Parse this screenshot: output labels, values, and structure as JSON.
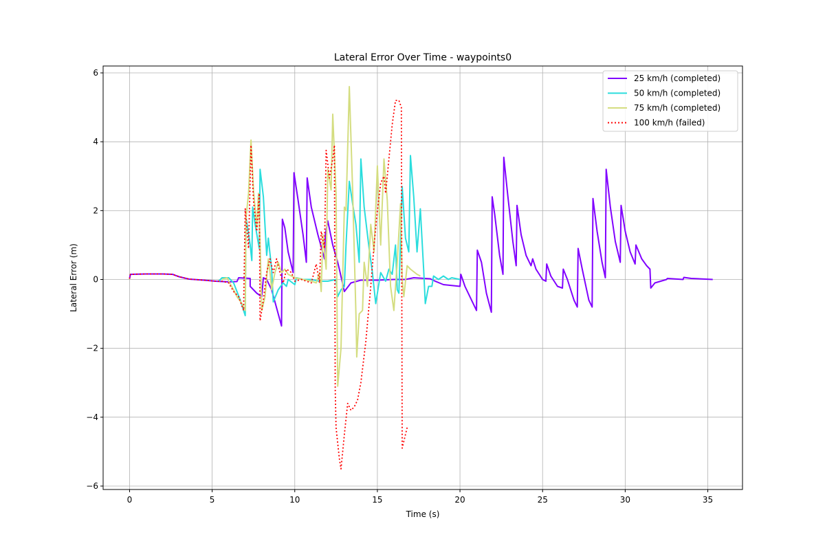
{
  "chart_data": {
    "type": "line",
    "title": "Lateral Error Over Time - waypoints0",
    "xlabel": "Time (s)",
    "ylabel": "Lateral Error (m)",
    "xlim": [
      -1.6,
      37.1
    ],
    "ylim": [
      -6.1,
      6.2
    ],
    "xticks": [
      0,
      5,
      10,
      15,
      20,
      25,
      30,
      35
    ],
    "yticks": [
      -6,
      -4,
      -2,
      0,
      2,
      4,
      6
    ],
    "grid": true,
    "legend_position": "top-right",
    "series": [
      {
        "name": "25 km/h (completed)",
        "color": "#8000ff",
        "dash": "solid",
        "points": [
          [
            0,
            0.02
          ],
          [
            0.05,
            0.15
          ],
          [
            1,
            0.16
          ],
          [
            2,
            0.16
          ],
          [
            2.6,
            0.15
          ],
          [
            3,
            0.08
          ],
          [
            3.6,
            0.01
          ],
          [
            4.5,
            -0.02
          ],
          [
            5.2,
            -0.05
          ],
          [
            6,
            -0.07
          ],
          [
            6.5,
            -0.06
          ],
          [
            6.6,
            0.05
          ],
          [
            7.3,
            0.03
          ],
          [
            7.3,
            -0.2
          ],
          [
            7.7,
            -0.4
          ],
          [
            8,
            -0.5
          ],
          [
            8.1,
            0.05
          ],
          [
            8.3,
            0
          ],
          [
            8.6,
            -0.3
          ],
          [
            9.2,
            -1.35
          ],
          [
            9.25,
            1.75
          ],
          [
            9.4,
            1.5
          ],
          [
            9.6,
            0.8
          ],
          [
            9.9,
            0.2
          ],
          [
            9.95,
            3.1
          ],
          [
            10.2,
            2.3
          ],
          [
            10.5,
            1.3
          ],
          [
            10.7,
            0.5
          ],
          [
            10.75,
            2.95
          ],
          [
            11,
            2.1
          ],
          [
            11.4,
            1.3
          ],
          [
            11.8,
            0.6
          ],
          [
            11.85,
            1.3
          ],
          [
            12,
            1.7
          ],
          [
            12.3,
            1.0
          ],
          [
            12.6,
            0.5
          ],
          [
            12.7,
            0.3
          ],
          [
            13,
            -0.35
          ],
          [
            13.4,
            -0.1
          ],
          [
            14,
            -0.02
          ],
          [
            15,
            -0.02
          ],
          [
            16,
            0
          ],
          [
            16.7,
            0
          ],
          [
            17.2,
            0.05
          ],
          [
            18.2,
            0.02
          ],
          [
            18.5,
            -0.05
          ],
          [
            19,
            -0.15
          ],
          [
            20,
            -0.2
          ],
          [
            20.05,
            0.15
          ],
          [
            20.3,
            -0.2
          ],
          [
            20.8,
            -0.7
          ],
          [
            21,
            -0.9
          ],
          [
            21.05,
            0.85
          ],
          [
            21.3,
            0.5
          ],
          [
            21.6,
            -0.4
          ],
          [
            21.9,
            -0.95
          ],
          [
            21.95,
            2.4
          ],
          [
            22.1,
            1.9
          ],
          [
            22.4,
            0.7
          ],
          [
            22.6,
            0.15
          ],
          [
            22.65,
            3.55
          ],
          [
            22.9,
            2.4
          ],
          [
            23.2,
            1.1
          ],
          [
            23.4,
            0.4
          ],
          [
            23.45,
            2.15
          ],
          [
            23.7,
            1.3
          ],
          [
            24,
            0.7
          ],
          [
            24.3,
            0.4
          ],
          [
            24.4,
            0.6
          ],
          [
            24.6,
            0.3
          ],
          [
            25,
            0
          ],
          [
            25.2,
            -0.05
          ],
          [
            25.25,
            0.45
          ],
          [
            25.5,
            0.1
          ],
          [
            25.9,
            -0.2
          ],
          [
            26.2,
            -0.25
          ],
          [
            26.25,
            0.3
          ],
          [
            26.5,
            0
          ],
          [
            26.9,
            -0.6
          ],
          [
            27.1,
            -0.8
          ],
          [
            27.15,
            0.9
          ],
          [
            27.4,
            0.3
          ],
          [
            27.8,
            -0.6
          ],
          [
            28,
            -0.8
          ],
          [
            28.05,
            2.35
          ],
          [
            28.3,
            1.4
          ],
          [
            28.6,
            0.5
          ],
          [
            28.8,
            0.05
          ],
          [
            28.85,
            3.2
          ],
          [
            29.1,
            2.1
          ],
          [
            29.4,
            1.1
          ],
          [
            29.7,
            0.5
          ],
          [
            29.75,
            2.15
          ],
          [
            30,
            1.4
          ],
          [
            30.3,
            0.8
          ],
          [
            30.6,
            0.45
          ],
          [
            30.65,
            1.0
          ],
          [
            31,
            0.6
          ],
          [
            31.3,
            0.4
          ],
          [
            31.5,
            0.3
          ],
          [
            31.55,
            -0.25
          ],
          [
            31.8,
            -0.1
          ],
          [
            32.5,
            0
          ],
          [
            32.55,
            0.03
          ],
          [
            33.5,
            0
          ],
          [
            33.55,
            0.06
          ],
          [
            34,
            0.03
          ],
          [
            35.3,
            0
          ]
        ]
      },
      {
        "name": "50 km/h (completed)",
        "color": "#2adddd",
        "dash": "solid",
        "points": [
          [
            5.4,
            -0.05
          ],
          [
            5.6,
            0.05
          ],
          [
            6,
            0.05
          ],
          [
            6.3,
            -0.1
          ],
          [
            6.7,
            -0.6
          ],
          [
            7,
            -1.05
          ],
          [
            7.05,
            1.8
          ],
          [
            7.3,
            1.0
          ],
          [
            7.4,
            0.55
          ],
          [
            7.45,
            2.1
          ],
          [
            7.6,
            1.6
          ],
          [
            7.85,
            0.9
          ],
          [
            7.9,
            3.2
          ],
          [
            8.1,
            2.4
          ],
          [
            8.3,
            0.7
          ],
          [
            8.4,
            1.2
          ],
          [
            8.6,
            0.3
          ],
          [
            8.7,
            -0.65
          ],
          [
            9,
            -0.3
          ],
          [
            9.3,
            -0.1
          ],
          [
            9.5,
            -0.2
          ],
          [
            9.6,
            0
          ],
          [
            10,
            -0.15
          ],
          [
            10.1,
            0.05
          ],
          [
            10.5,
            0
          ],
          [
            11,
            0
          ],
          [
            11.5,
            -0.05
          ],
          [
            12,
            -0.05
          ],
          [
            12.5,
            0
          ],
          [
            12.6,
            -0.5
          ],
          [
            12.8,
            -0.3
          ],
          [
            13,
            -0.2
          ],
          [
            13.1,
            1.0
          ],
          [
            13.3,
            2.85
          ],
          [
            13.5,
            2.2
          ],
          [
            13.7,
            1.6
          ],
          [
            13.9,
            0.5
          ],
          [
            14,
            3.5
          ],
          [
            14.2,
            2.1
          ],
          [
            14.5,
            0.9
          ],
          [
            14.7,
            0.2
          ],
          [
            14.9,
            -0.7
          ],
          [
            15.2,
            0.2
          ],
          [
            15.5,
            -0.05
          ],
          [
            15.7,
            0.3
          ],
          [
            15.9,
            0.15
          ],
          [
            16.1,
            1.0
          ],
          [
            16.2,
            -0.3
          ],
          [
            16.3,
            -0.4
          ],
          [
            16.5,
            2.7
          ],
          [
            16.7,
            1.2
          ],
          [
            16.9,
            0.8
          ],
          [
            17,
            3.6
          ],
          [
            17.2,
            2.4
          ],
          [
            17.4,
            0.8
          ],
          [
            17.6,
            2.05
          ],
          [
            17.8,
            0.3
          ],
          [
            17.9,
            -0.7
          ],
          [
            18.1,
            -0.2
          ],
          [
            18.3,
            -0.2
          ],
          [
            18.4,
            0.1
          ],
          [
            18.7,
            0
          ],
          [
            19,
            0.1
          ],
          [
            19.3,
            0
          ],
          [
            19.5,
            0.05
          ],
          [
            20,
            0
          ]
        ]
      },
      {
        "name": "75 km/h (completed)",
        "color": "#d4dd80",
        "dash": "solid",
        "points": [
          [
            5.6,
            0
          ],
          [
            5.9,
            0.05
          ],
          [
            6,
            -0.05
          ],
          [
            6.3,
            -0.3
          ],
          [
            6.5,
            -0.5
          ],
          [
            6.8,
            -0.7
          ],
          [
            7,
            -0.9
          ],
          [
            7.05,
            1.8
          ],
          [
            7.2,
            2.5
          ],
          [
            7.35,
            4.05
          ],
          [
            7.5,
            2.6
          ],
          [
            7.7,
            1.5
          ],
          [
            7.8,
            2.5
          ],
          [
            7.9,
            1.1
          ],
          [
            8,
            -0.9
          ],
          [
            8.2,
            -0.5
          ],
          [
            8.4,
            0.6
          ],
          [
            8.5,
            0.2
          ],
          [
            8.6,
            -0.3
          ],
          [
            8.8,
            0.2
          ],
          [
            9,
            0.5
          ],
          [
            9.2,
            0.2
          ],
          [
            9.4,
            0.3
          ],
          [
            9.6,
            0.15
          ],
          [
            9.8,
            0.1
          ],
          [
            10,
            0.05
          ],
          [
            10.5,
            0
          ],
          [
            11,
            -0.05
          ],
          [
            11.3,
            -0.1
          ],
          [
            11.5,
            0.2
          ],
          [
            11.6,
            -0.35
          ],
          [
            11.7,
            1.3
          ],
          [
            11.9,
            0.3
          ],
          [
            12,
            3.2
          ],
          [
            12.2,
            2.6
          ],
          [
            12.3,
            4.8
          ],
          [
            12.5,
            2.5
          ],
          [
            12.6,
            -3.1
          ],
          [
            12.8,
            -2.0
          ],
          [
            13,
            2.1
          ],
          [
            13.1,
            2.0
          ],
          [
            13.3,
            5.6
          ],
          [
            13.5,
            2.6
          ],
          [
            13.7,
            -1.0
          ],
          [
            13.75,
            -2.25
          ],
          [
            13.9,
            -1.0
          ],
          [
            14.1,
            -0.9
          ],
          [
            14.2,
            0.5
          ],
          [
            14.4,
            -0.2
          ],
          [
            14.6,
            1.6
          ],
          [
            14.8,
            0.8
          ],
          [
            15,
            3.3
          ],
          [
            15.2,
            1.0
          ],
          [
            15.4,
            3.5
          ],
          [
            15.6,
            2.3
          ],
          [
            15.8,
            -0.2
          ],
          [
            16,
            -0.9
          ],
          [
            16.2,
            0.5
          ],
          [
            16.4,
            2.2
          ],
          [
            16.5,
            0
          ],
          [
            16.6,
            -0.5
          ],
          [
            16.8,
            0.4
          ],
          [
            17,
            0.3
          ],
          [
            17.4,
            0.15
          ],
          [
            17.6,
            0.1
          ]
        ]
      },
      {
        "name": "100 km/h (failed)",
        "color": "#ff0000",
        "dash": "dotted",
        "points": [
          [
            0,
            0.02
          ],
          [
            0.05,
            0.15
          ],
          [
            1,
            0.16
          ],
          [
            2,
            0.16
          ],
          [
            2.6,
            0.15
          ],
          [
            3,
            0.08
          ],
          [
            3.6,
            0.01
          ],
          [
            4.5,
            -0.02
          ],
          [
            5.2,
            -0.05
          ],
          [
            5.6,
            -0.05
          ],
          [
            6,
            -0.1
          ],
          [
            6.3,
            -0.35
          ],
          [
            6.6,
            -0.5
          ],
          [
            6.9,
            -0.9
          ],
          [
            7,
            2.05
          ],
          [
            7.2,
            0.9
          ],
          [
            7.35,
            3.9
          ],
          [
            7.5,
            2.3
          ],
          [
            7.7,
            1.4
          ],
          [
            7.85,
            2.5
          ],
          [
            7.9,
            -1.2
          ],
          [
            8.1,
            -0.6
          ],
          [
            8.3,
            0.2
          ],
          [
            8.5,
            0.6
          ],
          [
            8.7,
            0.2
          ],
          [
            8.9,
            0.6
          ],
          [
            9.1,
            0.2
          ],
          [
            9.3,
            -0.1
          ],
          [
            9.5,
            0.3
          ],
          [
            9.8,
            0.2
          ],
          [
            10,
            -0.05
          ],
          [
            10.4,
            0
          ],
          [
            11,
            -0.1
          ],
          [
            11.3,
            0.45
          ],
          [
            11.5,
            -0.1
          ],
          [
            11.6,
            1.4
          ],
          [
            11.8,
            0.9
          ],
          [
            11.9,
            3.75
          ],
          [
            12.1,
            2.95
          ],
          [
            12.3,
            3.5
          ],
          [
            12.4,
            3.9
          ],
          [
            12.45,
            -3.2
          ],
          [
            12.5,
            -4.3
          ],
          [
            12.7,
            -5.2
          ],
          [
            12.8,
            -5.5
          ],
          [
            13,
            -4.5
          ],
          [
            13.2,
            -3.6
          ],
          [
            13.4,
            -3.8
          ],
          [
            13.6,
            -3.7
          ],
          [
            13.8,
            -3.5
          ],
          [
            14,
            -3.0
          ],
          [
            14.3,
            -1.8
          ],
          [
            14.6,
            -0.2
          ],
          [
            14.8,
            1.0
          ],
          [
            15,
            2.0
          ],
          [
            15.2,
            2.8
          ],
          [
            15.4,
            3.0
          ],
          [
            15.5,
            2.5
          ],
          [
            15.7,
            3.5
          ],
          [
            15.9,
            4.5
          ],
          [
            16.1,
            5.2
          ],
          [
            16.3,
            5.2
          ],
          [
            16.45,
            5.0
          ],
          [
            16.5,
            -4.9
          ],
          [
            16.7,
            -4.5
          ],
          [
            16.8,
            -4.3
          ]
        ]
      }
    ]
  }
}
